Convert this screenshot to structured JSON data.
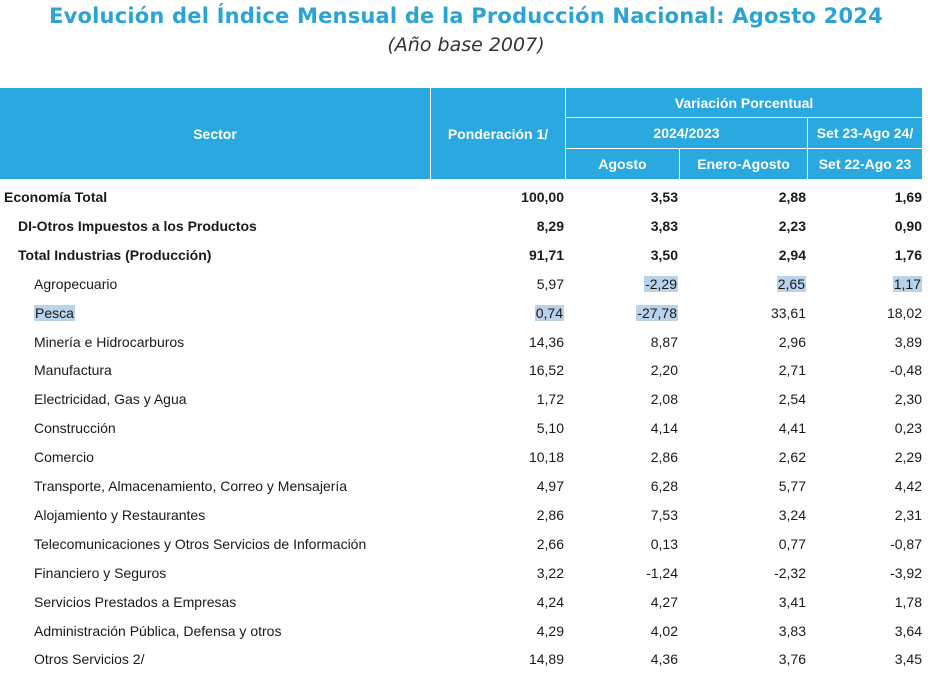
{
  "title": "Evolución del Índice Mensual de la Producción Nacional: Agosto 2024",
  "subtitle": "(Año base 2007)",
  "header": {
    "sector": "Sector",
    "ponderacion": "Ponderación 1/",
    "variacion": "Variación Porcentual",
    "period": "2024/2023",
    "agosto": "Agosto",
    "enero_agosto": "Enero-Agosto",
    "set_line1": "Set 23-Ago 24/",
    "set_line2": "Set 22-Ago 23"
  },
  "rows": [
    {
      "sector": "Economía Total",
      "pond": "100,00",
      "ago": "3,53",
      "ene": "2,88",
      "set": "1,69"
    },
    {
      "sector": "DI-Otros Impuestos a los Productos",
      "pond": "8,29",
      "ago": "3,83",
      "ene": "2,23",
      "set": "0,90"
    },
    {
      "sector": "Total  Industrias (Producción)",
      "pond": "91,71",
      "ago": "3,50",
      "ene": "2,94",
      "set": "1,76"
    },
    {
      "sector": "Agropecuario",
      "pond": "5,97",
      "ago": "-2,29",
      "ene": "2,65",
      "set": "1,17"
    },
    {
      "sector": "Pesca",
      "pond": "0,74",
      "ago": "-27,78",
      "ene": "33,61",
      "set": "18,02"
    },
    {
      "sector": "Minería e Hidrocarburos",
      "pond": "14,36",
      "ago": "8,87",
      "ene": "2,96",
      "set": "3,89"
    },
    {
      "sector": "Manufactura",
      "pond": "16,52",
      "ago": "2,20",
      "ene": "2,71",
      "set": "-0,48"
    },
    {
      "sector": "Electricidad, Gas y Agua",
      "pond": "1,72",
      "ago": "2,08",
      "ene": "2,54",
      "set": "2,30"
    },
    {
      "sector": "Construcción",
      "pond": "5,10",
      "ago": "4,14",
      "ene": "4,41",
      "set": "0,23"
    },
    {
      "sector": "Comercio",
      "pond": "10,18",
      "ago": "2,86",
      "ene": "2,62",
      "set": "2,29"
    },
    {
      "sector": "Transporte, Almacenamiento, Correo y Mensajería",
      "pond": "4,97",
      "ago": "6,28",
      "ene": "5,77",
      "set": "4,42"
    },
    {
      "sector": "Alojamiento y Restaurantes",
      "pond": "2,86",
      "ago": "7,53",
      "ene": "3,24",
      "set": "2,31"
    },
    {
      "sector": "Telecomunicaciones y Otros Servicios de Información",
      "pond": "2,66",
      "ago": "0,13",
      "ene": "0,77",
      "set": "-0,87"
    },
    {
      "sector": "Financiero y Seguros",
      "pond": "3,22",
      "ago": "-1,24",
      "ene": "-2,32",
      "set": "-3,92"
    },
    {
      "sector": "Servicios Prestados a Empresas",
      "pond": "4,24",
      "ago": "4,27",
      "ene": "3,41",
      "set": "1,78"
    },
    {
      "sector": "Administración Pública, Defensa y otros",
      "pond": "4,29",
      "ago": "4,02",
      "ene": "3,83",
      "set": "3,64"
    },
    {
      "sector": "Otros Servicios 2/",
      "pond": "14,89",
      "ago": "4,36",
      "ene": "3,76",
      "set": "3,45"
    }
  ]
}
